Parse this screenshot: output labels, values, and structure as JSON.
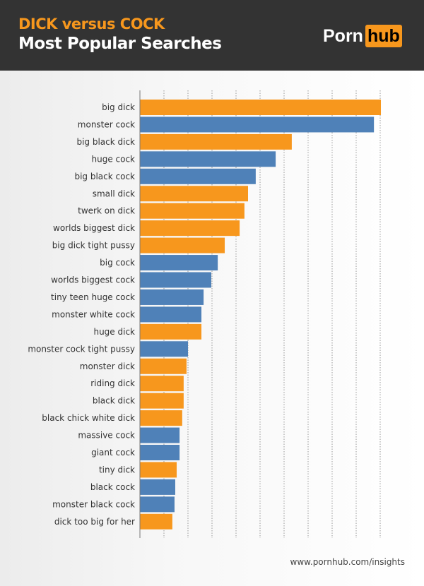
{
  "header": {
    "title": "DICK versus COCK",
    "subtitle": "Most Popular Searches",
    "logo": {
      "left": "Porn",
      "right": "hub"
    }
  },
  "footer": {
    "url": "www.pornhub.com/insights"
  },
  "colors": {
    "dick": "#f7971d",
    "cock": "#4f81b8",
    "header_bg": "#333333"
  },
  "chart_data": {
    "type": "bar",
    "orientation": "horizontal",
    "title": "Most Popular Searches",
    "value_unit": "relative (gridline units; no axis values printed)",
    "xlim": [
      0,
      10.5
    ],
    "grid": true,
    "categories": [
      "big dick",
      "monster cock",
      "big black dick",
      "huge cock",
      "big black cock",
      "small dick",
      "twerk on dick",
      "worlds biggest dick",
      "big dick tight pussy",
      "big cock",
      "worlds biggest cock",
      "tiny teen huge cock",
      "monster white cock",
      "huge dick",
      "monster cock tight pussy",
      "monster dick",
      "riding dick",
      "black dick",
      "black chick white dick",
      "massive cock",
      "giant cock",
      "tiny dick",
      "black cock",
      "monster black cock",
      "dick too big for her"
    ],
    "values": [
      10.03,
      9.74,
      6.32,
      5.65,
      4.82,
      4.5,
      4.35,
      4.15,
      3.53,
      3.24,
      2.97,
      2.65,
      2.56,
      2.56,
      2.0,
      1.94,
      1.82,
      1.82,
      1.76,
      1.65,
      1.65,
      1.53,
      1.47,
      1.44,
      1.35
    ],
    "groups": [
      "dick",
      "cock",
      "dick",
      "cock",
      "cock",
      "dick",
      "dick",
      "dick",
      "dick",
      "cock",
      "cock",
      "cock",
      "cock",
      "dick",
      "cock",
      "dick",
      "dick",
      "dick",
      "dick",
      "cock",
      "cock",
      "dick",
      "cock",
      "cock",
      "dick"
    ]
  }
}
